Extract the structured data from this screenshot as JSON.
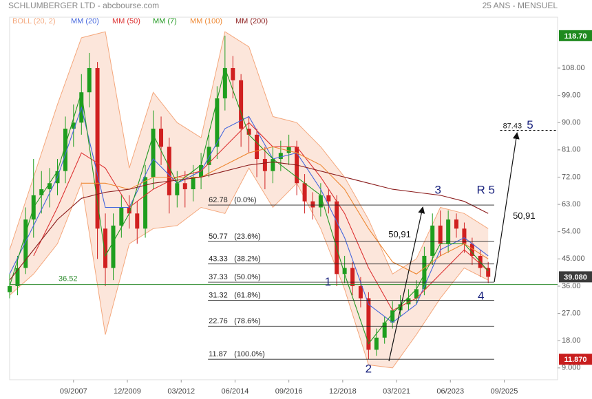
{
  "chart_data": {
    "type": "candlestick",
    "title": "SCHLUMBERGER LTD - abcbourse.com",
    "subtitle": "25 ANS - MENSUEL",
    "xlim": [
      2005.0,
      2027.9
    ],
    "ylim": [
      5.1,
      124.8
    ],
    "xticks": [
      {
        "value": 2007.67,
        "label": "09/2007"
      },
      {
        "value": 2009.92,
        "label": "12/2009"
      },
      {
        "value": 2012.17,
        "label": "03/2012"
      },
      {
        "value": 2014.42,
        "label": "06/2014"
      },
      {
        "value": 2016.67,
        "label": "09/2016"
      },
      {
        "value": 2018.92,
        "label": "12/2018"
      },
      {
        "value": 2021.17,
        "label": "03/2021"
      },
      {
        "value": 2023.42,
        "label": "06/2023"
      },
      {
        "value": 2025.67,
        "label": "09/2025"
      }
    ],
    "yticks": [
      {
        "value": 9,
        "label": "9.000"
      },
      {
        "value": 18,
        "label": "18.00"
      },
      {
        "value": 27,
        "label": "27.00"
      },
      {
        "value": 36,
        "label": "36.00"
      },
      {
        "value": 45,
        "label": "45.000"
      },
      {
        "value": 54,
        "label": "54.00"
      },
      {
        "value": 63,
        "label": "63.00"
      },
      {
        "value": 72,
        "label": "72.00"
      },
      {
        "value": 81,
        "label": "81.00"
      },
      {
        "value": 90,
        "label": "90.00"
      },
      {
        "value": 99,
        "label": "99.00"
      },
      {
        "value": 108,
        "label": "108.00"
      }
    ],
    "price_markers": [
      {
        "value": 118.7,
        "label": "118.70",
        "color": "#1f8a1f"
      },
      {
        "value": 39.08,
        "label": "39.080",
        "color": "#3a3a3a"
      },
      {
        "value": 11.87,
        "label": "11.870",
        "color": "#c81e1e"
      }
    ],
    "candles": {
      "up_color": "#1e9e1e",
      "down_color": "#d02020",
      "x": [
        2005.0,
        2005.33,
        2005.67,
        2006.0,
        2006.33,
        2006.67,
        2007.0,
        2007.33,
        2007.67,
        2008.0,
        2008.33,
        2008.67,
        2009.0,
        2009.33,
        2009.67,
        2010.0,
        2010.33,
        2010.67,
        2011.0,
        2011.33,
        2011.67,
        2012.0,
        2012.33,
        2012.67,
        2013.0,
        2013.33,
        2013.67,
        2014.0,
        2014.33,
        2014.67,
        2015.0,
        2015.33,
        2015.67,
        2016.0,
        2016.33,
        2016.67,
        2017.0,
        2017.33,
        2017.67,
        2018.0,
        2018.33,
        2018.67,
        2019.0,
        2019.33,
        2019.67,
        2020.0,
        2020.33,
        2020.67,
        2021.0,
        2021.33,
        2021.67,
        2022.0,
        2022.33,
        2022.67,
        2023.0,
        2023.33,
        2023.67,
        2024.0,
        2024.33,
        2024.67,
        2025.0
      ],
      "open": [
        34,
        36,
        42,
        58,
        66,
        68,
        70,
        74,
        88,
        90,
        100,
        108,
        55,
        42,
        56,
        62,
        60,
        55,
        72,
        88,
        82,
        66,
        70,
        68,
        72,
        76,
        82,
        98,
        108,
        104,
        88,
        86,
        78,
        74,
        78,
        80,
        82,
        70,
        64,
        62,
        66,
        64,
        40,
        42,
        36,
        32,
        15,
        19,
        24,
        28,
        30,
        32,
        35,
        46,
        56,
        50,
        58,
        55,
        50,
        46,
        42
      ],
      "high": [
        40,
        46,
        62,
        78,
        74,
        75,
        78,
        92,
        96,
        106,
        113,
        110,
        60,
        60,
        66,
        66,
        64,
        76,
        94,
        92,
        85,
        74,
        74,
        76,
        80,
        86,
        102,
        118.7,
        112,
        106,
        92,
        88,
        82,
        82,
        84,
        86,
        84,
        73,
        67,
        70,
        68,
        66,
        46,
        44,
        39,
        34,
        22,
        26,
        31,
        33,
        35,
        38,
        49,
        60,
        61,
        61,
        60,
        57,
        52,
        48,
        44
      ],
      "low": [
        32,
        33,
        40,
        52,
        60,
        62,
        66,
        70,
        82,
        86,
        95,
        45,
        36,
        38,
        52,
        55,
        50,
        52,
        68,
        76,
        60,
        62,
        62,
        64,
        68,
        72,
        78,
        94,
        98,
        82,
        80,
        72,
        68,
        70,
        74,
        76,
        66,
        60,
        58,
        59,
        60,
        36,
        37,
        33,
        29,
        11.87,
        13,
        17,
        22,
        26,
        28,
        30,
        33,
        43,
        46,
        47,
        52,
        47,
        43,
        39,
        37
      ],
      "close": [
        36,
        42,
        58,
        66,
        68,
        70,
        74,
        88,
        90,
        100,
        108,
        55,
        42,
        56,
        62,
        60,
        55,
        72,
        88,
        82,
        66,
        70,
        68,
        72,
        76,
        82,
        98,
        108,
        104,
        88,
        86,
        78,
        74,
        78,
        80,
        82,
        70,
        64,
        62,
        66,
        64,
        40,
        42,
        36,
        32,
        15,
        19,
        24,
        28,
        30,
        32,
        35,
        46,
        56,
        50,
        58,
        55,
        50,
        46,
        42,
        39.08
      ]
    },
    "series_x": [
      2005,
      2006,
      2007,
      2008,
      2009,
      2010,
      2011,
      2012,
      2013,
      2014,
      2015,
      2016,
      2017,
      2018,
      2019,
      2020,
      2021,
      2022,
      2023,
      2024,
      2025
    ],
    "series": [
      {
        "name": "BOLL (20, 2)",
        "color": "#f4a77c",
        "upper": [
          48,
          72,
          96,
          118,
          120,
          75,
          100,
          90,
          85,
          120,
          115,
          92,
          90,
          82,
          72,
          58,
          40,
          45,
          62,
          60,
          55
        ],
        "lower": [
          33,
          40,
          50,
          70,
          20,
          50,
          55,
          56,
          62,
          60,
          75,
          62,
          70,
          55,
          35,
          10,
          9,
          20,
          32,
          42,
          38
        ]
      },
      {
        "name": "MM (20)",
        "color": "#4466dd",
        "values": [
          40,
          56,
          72,
          95,
          62,
          62,
          78,
          70,
          74,
          88,
          92,
          78,
          80,
          68,
          52,
          30,
          24,
          30,
          48,
          52,
          46
        ]
      },
      {
        "name": "MM (50)",
        "color": "#dd3333",
        "values": [
          null,
          46,
          62,
          80,
          75,
          62,
          68,
          72,
          74,
          82,
          90,
          82,
          82,
          72,
          60,
          42,
          28,
          32,
          40,
          48,
          41
        ]
      },
      {
        "name": "MM (7)",
        "color": "#229922",
        "values": [
          36,
          62,
          74,
          100,
          46,
          60,
          86,
          70,
          76,
          108,
          86,
          78,
          72,
          66,
          40,
          17,
          27,
          35,
          50,
          50,
          41
        ]
      },
      {
        "name": "MM (100)",
        "color": "#ee8833",
        "values": [
          null,
          null,
          null,
          70,
          70,
          68,
          72,
          72,
          72,
          76,
          80,
          82,
          80,
          76,
          68,
          55,
          44,
          40,
          46,
          50,
          45
        ]
      },
      {
        "name": "MM (200)",
        "color": "#8b1c1c",
        "values": [
          38,
          48,
          58,
          65,
          67,
          68,
          70,
          71,
          72,
          74,
          76,
          77,
          76,
          74,
          72,
          70,
          68,
          67,
          66,
          64,
          60
        ]
      }
    ],
    "support": {
      "value": 36.52,
      "color": "#2e8b2e"
    },
    "fibonacci": {
      "levels": [
        62.78,
        50.77,
        43.33,
        37.33,
        31.32,
        22.76,
        11.87
      ],
      "percent_labels": [
        "(0.0%)",
        "(23.6%)",
        "(38.2%)",
        "(50.0%)",
        "(61.8%)",
        "(78.6%)",
        "(100.0%)"
      ],
      "xrange": [
        2013.29,
        2025.25
      ]
    },
    "target": {
      "value": 87.43,
      "xstart": 2025.5
    },
    "annotations": [
      {
        "text": "1",
        "x": 2018.3,
        "y": 37.2
      },
      {
        "text": "2",
        "x": 2020.0,
        "y": 8.5
      },
      {
        "text": "3",
        "x": 2022.9,
        "y": 67.6
      },
      {
        "text": "4",
        "x": 2024.7,
        "y": 32.6
      },
      {
        "text": "R 5",
        "x": 2024.9,
        "y": 67.6
      },
      {
        "text": "5",
        "x": 2026.75,
        "y": 89.0
      },
      {
        "text": "50,91",
        "x": 2021.3,
        "y": 52.9
      },
      {
        "text": "50,91",
        "x": 2026.5,
        "y": 59.0
      }
    ]
  }
}
